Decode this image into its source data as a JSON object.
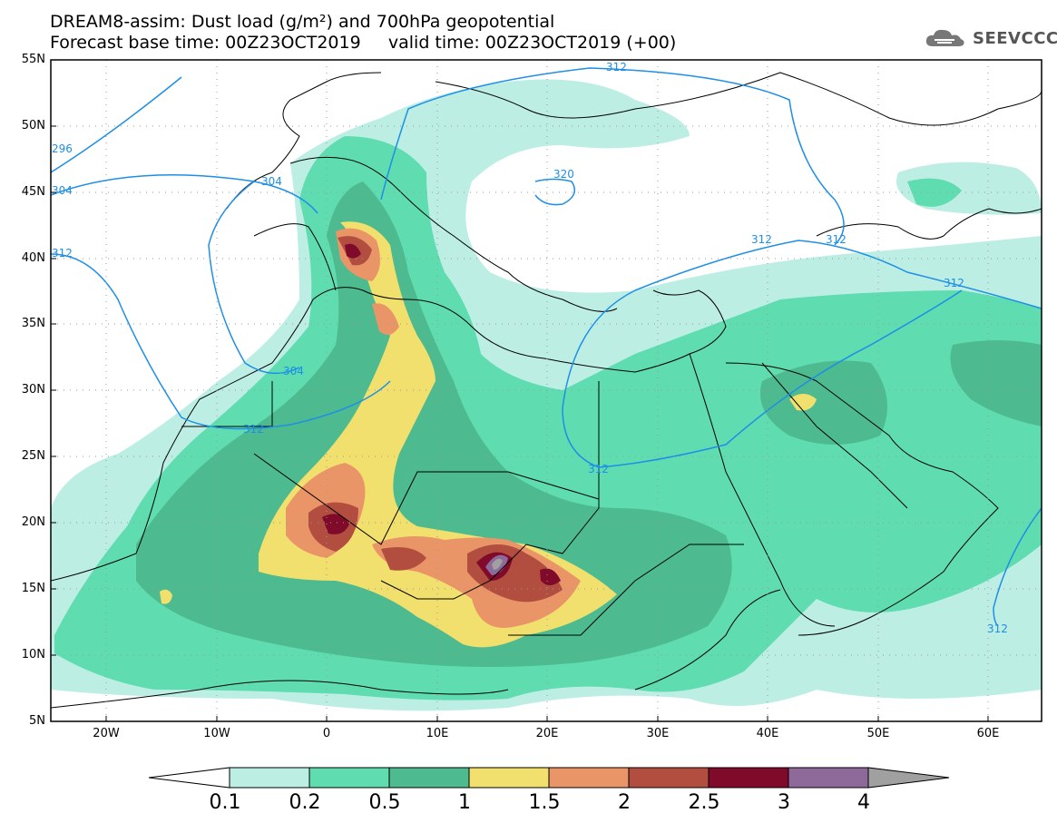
{
  "title": {
    "line1": "DREAM8-assim: Dust load (g/m²) and 700hPa geopotential",
    "line2": "Forecast base time: 00Z23OCT2019     valid time: 00Z23OCT2019 (+00)"
  },
  "logo": {
    "text": "SEEVCCC",
    "icon": "cloud-icon"
  },
  "axes": {
    "lat_labels": [
      "55N",
      "50N",
      "45N",
      "40N",
      "35N",
      "30N",
      "25N",
      "20N",
      "15N",
      "10N",
      "5N"
    ],
    "lon_labels": [
      "20W",
      "10W",
      "0",
      "10E",
      "20E",
      "30E",
      "40E",
      "50E",
      "60E"
    ]
  },
  "contours": {
    "labels": [
      "312",
      "296",
      "304",
      "312",
      "304",
      "312",
      "304",
      "312",
      "320",
      "312",
      "312",
      "312",
      "312"
    ]
  },
  "colorbar": {
    "labels": [
      "0.1",
      "0.2",
      "0.5",
      "1",
      "1.5",
      "2",
      "2.5",
      "3",
      "4"
    ],
    "colors": [
      "#bdeee4",
      "#5fdcb0",
      "#4dba8f",
      "#f2e06e",
      "#ea9568",
      "#b14e40",
      "#800a2a",
      "#8e6a9b",
      "#a0a0a0"
    ]
  }
}
